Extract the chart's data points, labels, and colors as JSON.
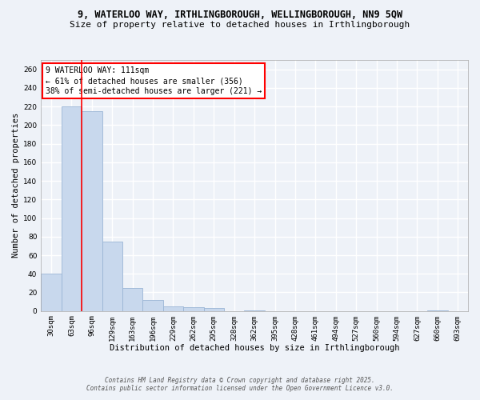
{
  "title1": "9, WATERLOO WAY, IRTHLINGBOROUGH, WELLINGBOROUGH, NN9 5QW",
  "title2": "Size of property relative to detached houses in Irthlingborough",
  "xlabel": "Distribution of detached houses by size in Irthlingborough",
  "ylabel": "Number of detached properties",
  "bar_color": "#c8d8ed",
  "bar_edge_color": "#9ab5d5",
  "categories": [
    "30sqm",
    "63sqm",
    "96sqm",
    "129sqm",
    "163sqm",
    "196sqm",
    "229sqm",
    "262sqm",
    "295sqm",
    "328sqm",
    "362sqm",
    "395sqm",
    "428sqm",
    "461sqm",
    "494sqm",
    "527sqm",
    "560sqm",
    "594sqm",
    "627sqm",
    "660sqm",
    "693sqm"
  ],
  "values": [
    40,
    220,
    215,
    75,
    25,
    12,
    5,
    4,
    3,
    0,
    1,
    0,
    0,
    0,
    0,
    0,
    0,
    0,
    0,
    1,
    0
  ],
  "red_line_x": 2.0,
  "annotation_text": "9 WATERLOO WAY: 111sqm\n← 61% of detached houses are smaller (356)\n38% of semi-detached houses are larger (221) →",
  "footnote1": "Contains HM Land Registry data © Crown copyright and database right 2025.",
  "footnote2": "Contains public sector information licensed under the Open Government Licence v3.0.",
  "ylim": [
    0,
    270
  ],
  "yticks": [
    0,
    20,
    40,
    60,
    80,
    100,
    120,
    140,
    160,
    180,
    200,
    220,
    240,
    260
  ],
  "background_color": "#eef2f8",
  "grid_color": "#ffffff",
  "title_fontsize": 8.5,
  "subtitle_fontsize": 8,
  "axis_fontsize": 7.5,
  "tick_fontsize": 6.5,
  "annot_fontsize": 7,
  "footnote_fontsize": 5.5
}
